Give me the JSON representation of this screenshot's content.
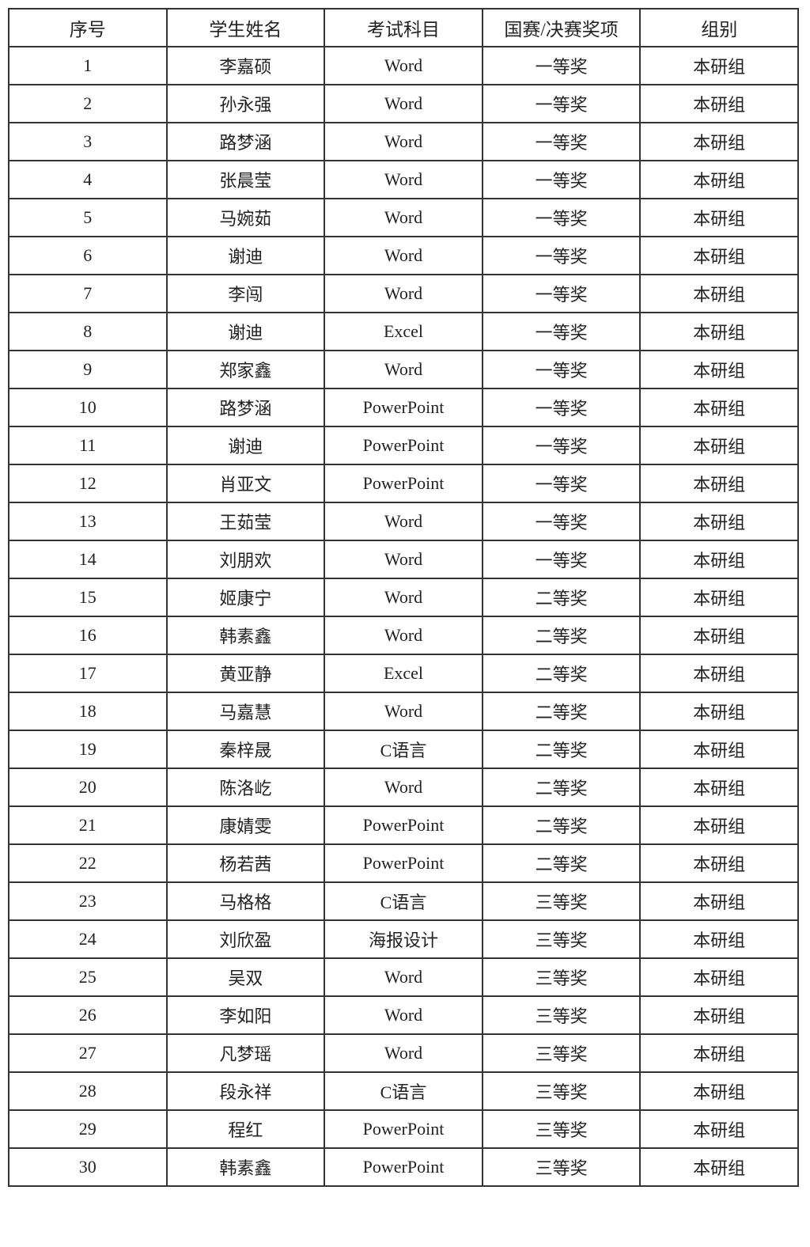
{
  "headers": [
    "序号",
    "学生姓名",
    "考试科目",
    "国赛/决赛奖项",
    "组别"
  ],
  "rows": [
    [
      "1",
      "李嘉硕",
      "Word",
      "一等奖",
      "本研组"
    ],
    [
      "2",
      "孙永强",
      "Word",
      "一等奖",
      "本研组"
    ],
    [
      "3",
      "路梦涵",
      "Word",
      "一等奖",
      "本研组"
    ],
    [
      "4",
      "张晨莹",
      "Word",
      "一等奖",
      "本研组"
    ],
    [
      "5",
      "马婉茹",
      "Word",
      "一等奖",
      "本研组"
    ],
    [
      "6",
      "谢迪",
      "Word",
      "一等奖",
      "本研组"
    ],
    [
      "7",
      "李闯",
      "Word",
      "一等奖",
      "本研组"
    ],
    [
      "8",
      "谢迪",
      "Excel",
      "一等奖",
      "本研组"
    ],
    [
      "9",
      "郑家鑫",
      "Word",
      "一等奖",
      "本研组"
    ],
    [
      "10",
      "路梦涵",
      "PowerPoint",
      "一等奖",
      "本研组"
    ],
    [
      "11",
      "谢迪",
      "PowerPoint",
      "一等奖",
      "本研组"
    ],
    [
      "12",
      "肖亚文",
      "PowerPoint",
      "一等奖",
      "本研组"
    ],
    [
      "13",
      "王茹莹",
      "Word",
      "一等奖",
      "本研组"
    ],
    [
      "14",
      "刘朋欢",
      "Word",
      "一等奖",
      "本研组"
    ],
    [
      "15",
      "姬康宁",
      "Word",
      "二等奖",
      "本研组"
    ],
    [
      "16",
      "韩素鑫",
      "Word",
      "二等奖",
      "本研组"
    ],
    [
      "17",
      "黄亚静",
      "Excel",
      "二等奖",
      "本研组"
    ],
    [
      "18",
      "马嘉慧",
      "Word",
      "二等奖",
      "本研组"
    ],
    [
      "19",
      "秦梓晟",
      "C语言",
      "二等奖",
      "本研组"
    ],
    [
      "20",
      "陈洛屹",
      "Word",
      "二等奖",
      "本研组"
    ],
    [
      "21",
      "康婧雯",
      "PowerPoint",
      "二等奖",
      "本研组"
    ],
    [
      "22",
      "杨若茜",
      "PowerPoint",
      "二等奖",
      "本研组"
    ],
    [
      "23",
      "马格格",
      "C语言",
      "三等奖",
      "本研组"
    ],
    [
      "24",
      "刘欣盈",
      "海报设计",
      "三等奖",
      "本研组"
    ],
    [
      "25",
      "吴双",
      "Word",
      "三等奖",
      "本研组"
    ],
    [
      "26",
      "李如阳",
      "Word",
      "三等奖",
      "本研组"
    ],
    [
      "27",
      "凡梦瑶",
      "Word",
      "三等奖",
      "本研组"
    ],
    [
      "28",
      "段永祥",
      "C语言",
      "三等奖",
      "本研组"
    ],
    [
      "29",
      "程红",
      "PowerPoint",
      "三等奖",
      "本研组"
    ],
    [
      "30",
      "韩素鑫",
      "PowerPoint",
      "三等奖",
      "本研组"
    ]
  ]
}
